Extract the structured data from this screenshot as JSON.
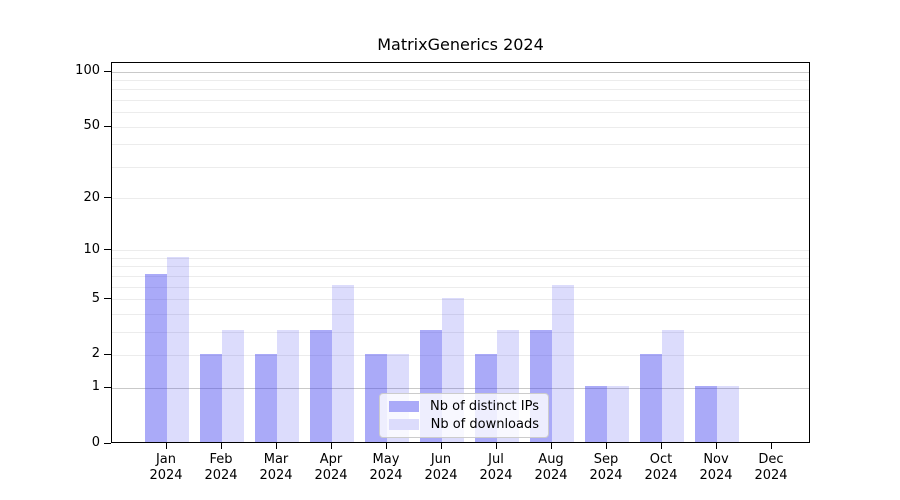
{
  "title": "MatrixGenerics 2024",
  "chart_data": {
    "type": "bar",
    "title": "MatrixGenerics 2024",
    "categories": [
      "Jan",
      "Feb",
      "Mar",
      "Apr",
      "May",
      "Jun",
      "Jul",
      "Aug",
      "Sep",
      "Oct",
      "Nov",
      "Dec"
    ],
    "x_sublabel": "2024",
    "series": [
      {
        "name": "Nb of distinct IPs",
        "color": "#aaaaf8",
        "values": [
          7,
          2,
          2,
          3,
          2,
          3,
          2,
          3,
          1,
          2,
          1,
          0
        ]
      },
      {
        "name": "Nb of downloads",
        "color": "#dcdcfc",
        "values": [
          9,
          3,
          3,
          6,
          2,
          5,
          3,
          6,
          1,
          3,
          1,
          0
        ]
      }
    ],
    "yticks": [
      0,
      1,
      2,
      5,
      10,
      20,
      50,
      100
    ],
    "ylabel": "",
    "xlabel": "",
    "yscale": "log10(1+x)",
    "ylim": [
      0,
      111
    ],
    "grid": "horizontal, emphasized at 1 and 100",
    "legend_position": "lower center"
  }
}
